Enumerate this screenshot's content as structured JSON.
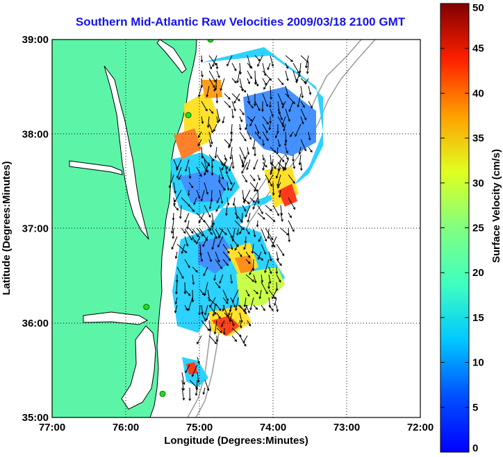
{
  "chart_data": {
    "type": "heatmap",
    "title": "Southern Mid-Atlantic Raw Velocities 2009/03/18 2100 GMT",
    "xlabel": "Longitude (Degrees:Minutes)",
    "ylabel": "Latitude (Degrees:Minutes)",
    "xlim": [
      -77,
      -72
    ],
    "ylim": [
      35,
      39
    ],
    "x_ticks": [
      {
        "value": -77,
        "label": "77:00"
      },
      {
        "value": -76,
        "label": "76:00"
      },
      {
        "value": -75,
        "label": "75:00"
      },
      {
        "value": -74,
        "label": "74:00"
      },
      {
        "value": -73,
        "label": "73:00"
      },
      {
        "value": -72,
        "label": "72:00"
      }
    ],
    "y_ticks": [
      {
        "value": 35,
        "label": "35:00"
      },
      {
        "value": 36,
        "label": "36:00"
      },
      {
        "value": 37,
        "label": "37:00"
      },
      {
        "value": 38,
        "label": "38:00"
      },
      {
        "value": 39,
        "label": "39:00"
      }
    ],
    "grid": true,
    "colorbar": {
      "label": "Surface Velocity (cm/s)",
      "range": [
        0,
        50
      ],
      "ticks": [
        0,
        5,
        10,
        15,
        20,
        25,
        30,
        35,
        40,
        45,
        50
      ],
      "colormap": "jet",
      "placement": "right"
    },
    "colors": {
      "land": "#5cf5a8",
      "coastline": "#000000",
      "bathymetry": "#9a9a9a",
      "site_marker": "#22dd22",
      "title": "#1414e6"
    },
    "sites": [
      {
        "lon": -74.85,
        "lat": 39.0
      },
      {
        "lon": -75.15,
        "lat": 38.2
      },
      {
        "lon": -75.72,
        "lat": 36.17
      },
      {
        "lon": -75.5,
        "lat": 35.25
      }
    ]
  }
}
